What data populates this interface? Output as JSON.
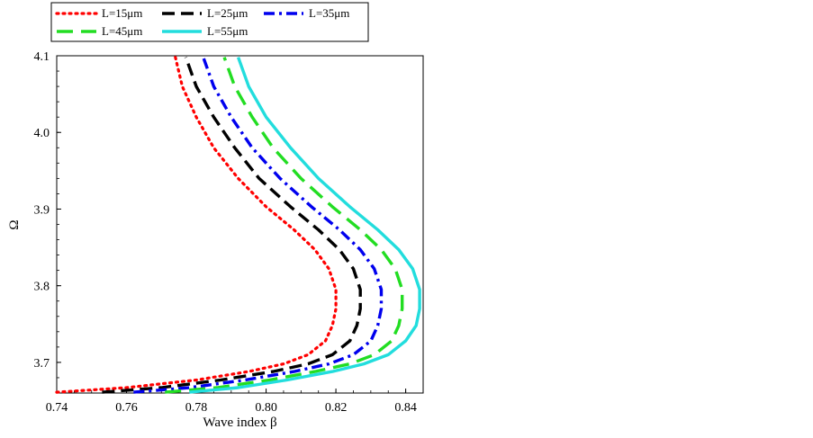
{
  "chart_data": {
    "type": "line",
    "title": "",
    "xlabel": "Wave index β",
    "ylabel": "Ω",
    "xlim": [
      0.74,
      0.845
    ],
    "ylim": [
      3.66,
      4.1
    ],
    "xticks": [
      0.74,
      0.76,
      0.78,
      0.8,
      0.82,
      0.84
    ],
    "xtick_labels": [
      "0.74",
      "0.76",
      "0.78",
      "0.80",
      "0.82",
      "0.84"
    ],
    "yticks": [
      3.7,
      3.8,
      3.9,
      4.0,
      4.1
    ],
    "ytick_labels": [
      "3.7",
      "3.8",
      "3.9",
      "4.0",
      "4.1"
    ],
    "grid": false,
    "legend_position": "top-left, above plot",
    "series": [
      {
        "name": "L=15μm",
        "color": "#ff0000",
        "style": "dotted",
        "points": [
          [
            0.74,
            3.661
          ],
          [
            0.76,
            3.667
          ],
          [
            0.78,
            3.677
          ],
          [
            0.795,
            3.688
          ],
          [
            0.805,
            3.698
          ],
          [
            0.812,
            3.71
          ],
          [
            0.817,
            3.728
          ],
          [
            0.819,
            3.748
          ],
          [
            0.82,
            3.77
          ],
          [
            0.82,
            3.795
          ],
          [
            0.818,
            3.822
          ],
          [
            0.814,
            3.847
          ],
          [
            0.808,
            3.873
          ],
          [
            0.8,
            3.903
          ],
          [
            0.792,
            3.94
          ],
          [
            0.785,
            3.98
          ],
          [
            0.78,
            4.02
          ],
          [
            0.776,
            4.06
          ],
          [
            0.774,
            4.098
          ]
        ]
      },
      {
        "name": "L=25μm",
        "color": "#000000",
        "style": "dashed",
        "points": [
          [
            0.753,
            3.661
          ],
          [
            0.77,
            3.667
          ],
          [
            0.787,
            3.677
          ],
          [
            0.802,
            3.688
          ],
          [
            0.812,
            3.698
          ],
          [
            0.819,
            3.71
          ],
          [
            0.824,
            3.728
          ],
          [
            0.826,
            3.748
          ],
          [
            0.827,
            3.77
          ],
          [
            0.827,
            3.795
          ],
          [
            0.825,
            3.822
          ],
          [
            0.821,
            3.847
          ],
          [
            0.815,
            3.873
          ],
          [
            0.807,
            3.903
          ],
          [
            0.798,
            3.94
          ],
          [
            0.791,
            3.98
          ],
          [
            0.785,
            4.02
          ],
          [
            0.78,
            4.06
          ],
          [
            0.777,
            4.098
          ]
        ]
      },
      {
        "name": "L=35μm",
        "color": "#0000ee",
        "style": "dash-dot",
        "points": [
          [
            0.762,
            3.661
          ],
          [
            0.778,
            3.667
          ],
          [
            0.794,
            3.677
          ],
          [
            0.808,
            3.688
          ],
          [
            0.818,
            3.698
          ],
          [
            0.825,
            3.71
          ],
          [
            0.83,
            3.728
          ],
          [
            0.832,
            3.748
          ],
          [
            0.833,
            3.77
          ],
          [
            0.833,
            3.795
          ],
          [
            0.831,
            3.822
          ],
          [
            0.827,
            3.847
          ],
          [
            0.821,
            3.873
          ],
          [
            0.813,
            3.903
          ],
          [
            0.804,
            3.94
          ],
          [
            0.796,
            3.98
          ],
          [
            0.79,
            4.02
          ],
          [
            0.785,
            4.06
          ],
          [
            0.782,
            4.098
          ]
        ]
      },
      {
        "name": "L=45μm",
        "color": "#22dd22",
        "style": "long-dash",
        "points": [
          [
            0.771,
            3.661
          ],
          [
            0.786,
            3.667
          ],
          [
            0.801,
            3.677
          ],
          [
            0.814,
            3.688
          ],
          [
            0.824,
            3.698
          ],
          [
            0.831,
            3.71
          ],
          [
            0.836,
            3.728
          ],
          [
            0.838,
            3.748
          ],
          [
            0.839,
            3.77
          ],
          [
            0.839,
            3.795
          ],
          [
            0.837,
            3.822
          ],
          [
            0.833,
            3.847
          ],
          [
            0.827,
            3.873
          ],
          [
            0.819,
            3.903
          ],
          [
            0.81,
            3.94
          ],
          [
            0.802,
            3.98
          ],
          [
            0.796,
            4.02
          ],
          [
            0.791,
            4.06
          ],
          [
            0.788,
            4.098
          ]
        ]
      },
      {
        "name": "L=55μm",
        "color": "#22dddd",
        "style": "solid",
        "points": [
          [
            0.778,
            3.661
          ],
          [
            0.792,
            3.667
          ],
          [
            0.806,
            3.677
          ],
          [
            0.819,
            3.688
          ],
          [
            0.828,
            3.698
          ],
          [
            0.835,
            3.71
          ],
          [
            0.84,
            3.728
          ],
          [
            0.843,
            3.748
          ],
          [
            0.844,
            3.77
          ],
          [
            0.844,
            3.795
          ],
          [
            0.842,
            3.822
          ],
          [
            0.838,
            3.847
          ],
          [
            0.832,
            3.873
          ],
          [
            0.824,
            3.903
          ],
          [
            0.815,
            3.94
          ],
          [
            0.807,
            3.98
          ],
          [
            0.8,
            4.02
          ],
          [
            0.795,
            4.06
          ],
          [
            0.792,
            4.098
          ]
        ]
      }
    ]
  }
}
